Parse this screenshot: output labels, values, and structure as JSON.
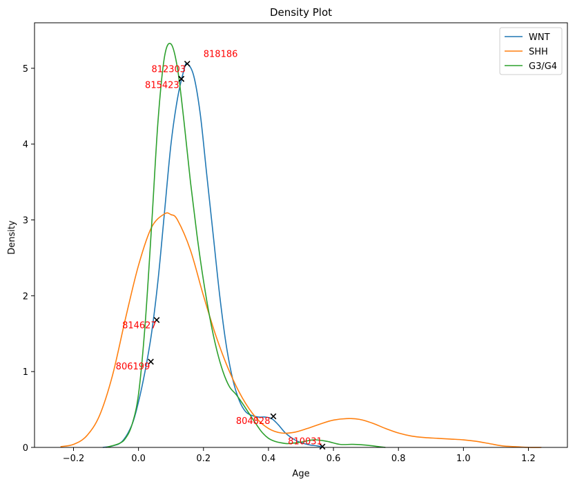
{
  "chart_data": {
    "type": "line",
    "title": "Density Plot",
    "xlabel": "Age",
    "ylabel": "Density",
    "xlim": [
      -0.32,
      1.32
    ],
    "ylim": [
      0,
      5.6
    ],
    "xticks": [
      -0.2,
      0.0,
      0.2,
      0.4,
      0.6,
      0.8,
      1.0,
      1.2
    ],
    "xtick_labels": [
      "−0.2",
      "0.0",
      "0.2",
      "0.4",
      "0.6",
      "0.8",
      "1.0",
      "1.2"
    ],
    "yticks": [
      0,
      1,
      2,
      3,
      4,
      5
    ],
    "ytick_labels": [
      "0",
      "1",
      "2",
      "3",
      "4",
      "5"
    ],
    "grid": false,
    "legend_position": "top-right",
    "series": [
      {
        "name": "WNT",
        "color": "#1f77b4",
        "x": [
          -0.11,
          -0.08,
          -0.05,
          -0.02,
          0.0,
          0.02,
          0.04,
          0.06,
          0.08,
          0.1,
          0.12,
          0.14,
          0.15,
          0.17,
          0.19,
          0.21,
          0.23,
          0.25,
          0.27,
          0.29,
          0.31,
          0.33,
          0.35,
          0.37,
          0.39,
          0.41,
          0.43,
          0.45,
          0.47,
          0.49,
          0.51,
          0.53,
          0.55,
          0.57
        ],
        "y": [
          0.0,
          0.02,
          0.08,
          0.3,
          0.6,
          1.0,
          1.5,
          2.2,
          3.1,
          4.0,
          4.6,
          4.98,
          5.06,
          4.9,
          4.4,
          3.6,
          2.8,
          2.0,
          1.35,
          0.9,
          0.62,
          0.47,
          0.42,
          0.4,
          0.4,
          0.38,
          0.3,
          0.2,
          0.13,
          0.08,
          0.05,
          0.03,
          0.02,
          0.0
        ]
      },
      {
        "name": "SHH",
        "color": "#ff7f0e",
        "x": [
          -0.24,
          -0.2,
          -0.16,
          -0.12,
          -0.08,
          -0.04,
          0.0,
          0.04,
          0.08,
          0.1,
          0.12,
          0.16,
          0.2,
          0.24,
          0.28,
          0.32,
          0.36,
          0.4,
          0.44,
          0.48,
          0.52,
          0.56,
          0.6,
          0.64,
          0.68,
          0.72,
          0.76,
          0.8,
          0.84,
          0.88,
          0.92,
          0.96,
          1.0,
          1.04,
          1.08,
          1.12,
          1.16,
          1.2,
          1.24
        ],
        "y": [
          0.01,
          0.04,
          0.15,
          0.42,
          0.95,
          1.7,
          2.4,
          2.9,
          3.08,
          3.07,
          3.0,
          2.6,
          2.0,
          1.45,
          1.0,
          0.65,
          0.4,
          0.25,
          0.19,
          0.2,
          0.25,
          0.31,
          0.36,
          0.38,
          0.37,
          0.32,
          0.25,
          0.19,
          0.15,
          0.13,
          0.12,
          0.11,
          0.1,
          0.08,
          0.05,
          0.02,
          0.01,
          0.0,
          0.0
        ]
      },
      {
        "name": "G3/G4",
        "color": "#2ca02c",
        "x": [
          -0.1,
          -0.06,
          -0.04,
          -0.02,
          0.0,
          0.02,
          0.04,
          0.06,
          0.08,
          0.1,
          0.12,
          0.14,
          0.16,
          0.18,
          0.2,
          0.22,
          0.24,
          0.26,
          0.28,
          0.3,
          0.32,
          0.34,
          0.36,
          0.38,
          0.4,
          0.42,
          0.44,
          0.46,
          0.5,
          0.54,
          0.58,
          0.62,
          0.66,
          0.7,
          0.74,
          0.76
        ],
        "y": [
          0.0,
          0.05,
          0.12,
          0.3,
          0.7,
          1.6,
          2.9,
          4.3,
          5.15,
          5.32,
          5.0,
          4.3,
          3.5,
          2.8,
          2.2,
          1.7,
          1.3,
          1.0,
          0.8,
          0.7,
          0.58,
          0.45,
          0.32,
          0.2,
          0.12,
          0.08,
          0.06,
          0.05,
          0.07,
          0.1,
          0.08,
          0.04,
          0.04,
          0.03,
          0.01,
          0.0
        ]
      }
    ],
    "markers": [
      {
        "x": 0.15,
        "y": 5.06,
        "label": "818186",
        "lx": 0.2,
        "ly": 5.15
      },
      {
        "x": 0.132,
        "y": 4.86,
        "label": "812303",
        "lx": 0.04,
        "ly": 4.95
      },
      {
        "x": 0.132,
        "y": 4.86,
        "label": "815423",
        "lx": 0.02,
        "ly": 4.74
      },
      {
        "x": 0.056,
        "y": 1.68,
        "label": "814627",
        "lx": -0.05,
        "ly": 1.57
      },
      {
        "x": 0.038,
        "y": 1.13,
        "label": "806199",
        "lx": -0.07,
        "ly": 1.03
      },
      {
        "x": 0.415,
        "y": 0.41,
        "label": "804828",
        "lx": 0.3,
        "ly": 0.31
      },
      {
        "x": 0.566,
        "y": 0.01,
        "label": "810031",
        "lx": 0.46,
        "ly": 0.04
      }
    ],
    "annotation_color": "#ff0000",
    "marker_color": "#000000"
  }
}
